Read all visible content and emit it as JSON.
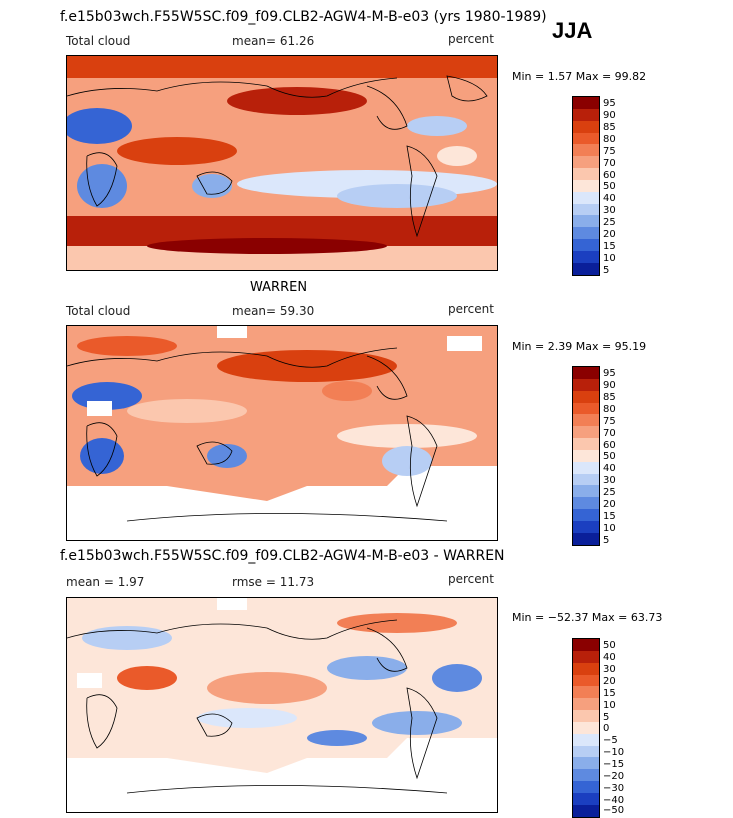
{
  "header": {
    "title": "f.e15b03wch.F55W5SC.f09_f09.CLB2-AGW4-M-B-e03 (yrs 1980-1989)",
    "season": "JJA"
  },
  "panels": [
    {
      "heading": "",
      "left_label": "Total cloud",
      "mid_label": "mean=  61.26",
      "right_label": "percent",
      "stats": "Min =    1.57 Max =   99.82",
      "levels": [
        "95",
        "90",
        "85",
        "80",
        "75",
        "70",
        "60",
        "50",
        "40",
        "30",
        "25",
        "20",
        "15",
        "10",
        "5"
      ]
    },
    {
      "heading": "WARREN",
      "left_label": "Total cloud",
      "mid_label": "mean=  59.30",
      "right_label": "percent",
      "stats": "Min =    2.39 Max =   95.19",
      "levels": [
        "95",
        "90",
        "85",
        "80",
        "75",
        "70",
        "60",
        "50",
        "40",
        "30",
        "25",
        "20",
        "15",
        "10",
        "5"
      ]
    },
    {
      "heading": "f.e15b03wch.F55W5SC.f09_f09.CLB2-AGW4-M-B-e03 - WARREN",
      "left_label": "mean =   1.97",
      "mid_label": "rmse =  11.73",
      "right_label": "percent",
      "stats": "Min = −52.37 Max =   63.73",
      "levels": [
        "50",
        "40",
        "30",
        "20",
        "15",
        "10",
        "5",
        "0",
        "−5",
        "−10",
        "−15",
        "−20",
        "−30",
        "−40",
        "−50"
      ]
    }
  ],
  "colors": {
    "ramp": [
      "#8a0000",
      "#b8200a",
      "#d9400f",
      "#ea5a2a",
      "#f27f55",
      "#f6a07e",
      "#fbc7ae",
      "#fde6d9",
      "#dbe7fb",
      "#b7cef4",
      "#8aaeea",
      "#5e8ae0",
      "#3564d4",
      "#1b3fc0",
      "#0a1f9a"
    ]
  }
}
